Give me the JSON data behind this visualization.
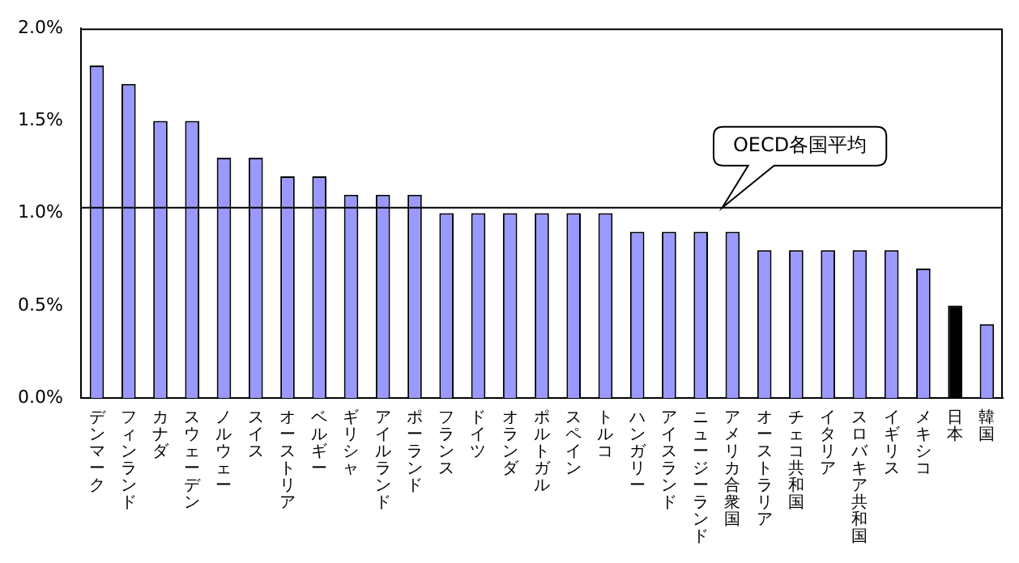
{
  "chart_data": {
    "type": "bar",
    "categories": [
      "デンマーク",
      "フィンランド",
      "カナダ",
      "スウェーデン",
      "ノルウェー",
      "スイス",
      "オーストリア",
      "ベルギー",
      "ギリシャ",
      "アイルランド",
      "ポーランド",
      "フランス",
      "ドイツ",
      "オランダ",
      "ポルトガル",
      "スペイン",
      "トルコ",
      "ハンガリー",
      "アイスランド",
      "ニュージーランド",
      "アメリカ合衆国",
      "オーストラリア",
      "チェコ共和国",
      "イタリア",
      "スロバキア共和国",
      "イギリス",
      "メキシコ",
      "日本",
      "韓国"
    ],
    "values": [
      1.8,
      1.7,
      1.5,
      1.5,
      1.3,
      1.3,
      1.2,
      1.2,
      1.1,
      1.1,
      1.1,
      1.0,
      1.0,
      1.0,
      1.0,
      1.0,
      1.0,
      0.9,
      0.9,
      0.9,
      0.9,
      0.8,
      0.8,
      0.8,
      0.8,
      0.8,
      0.7,
      0.5,
      0.4
    ],
    "colors": [
      "#9999ff",
      "#9999ff",
      "#9999ff",
      "#9999ff",
      "#9999ff",
      "#9999ff",
      "#9999ff",
      "#9999ff",
      "#9999ff",
      "#9999ff",
      "#9999ff",
      "#9999ff",
      "#9999ff",
      "#9999ff",
      "#9999ff",
      "#9999ff",
      "#9999ff",
      "#9999ff",
      "#9999ff",
      "#9999ff",
      "#9999ff",
      "#9999ff",
      "#9999ff",
      "#9999ff",
      "#9999ff",
      "#9999ff",
      "#9999ff",
      "#000000",
      "#9999ff"
    ],
    "ylim": [
      0,
      2
    ],
    "yticks": [
      {
        "value": 0,
        "label": "0.0%"
      },
      {
        "value": 0.5,
        "label": "0.5%"
      },
      {
        "value": 1,
        "label": "1.0%"
      },
      {
        "value": 1.5,
        "label": "1.5%"
      },
      {
        "value": 2,
        "label": "2.0%"
      }
    ],
    "ref_lines": [
      {
        "axis": "y",
        "value": 1.03,
        "label": "OECD各国平均",
        "color": "#000000"
      }
    ],
    "grid": false,
    "legend": false
  }
}
